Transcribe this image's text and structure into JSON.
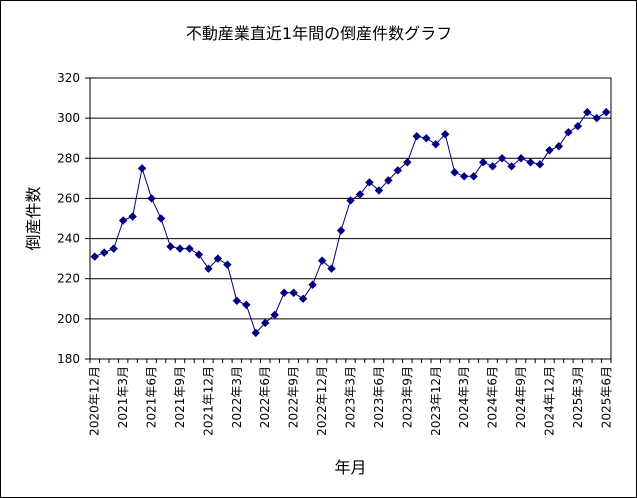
{
  "chart_data": {
    "type": "line",
    "title": "不動産業直近1年間の倒産件数グラフ",
    "xlabel": "年月",
    "ylabel": "倒産件数",
    "ylim": [
      180,
      320
    ],
    "yticks": [
      180,
      200,
      220,
      240,
      260,
      280,
      300,
      320
    ],
    "grid": true,
    "legend": false,
    "line_color": "#000080",
    "marker": "diamond",
    "x_tick_labels": [
      "2020年12月",
      "2021年3月",
      "2021年6月",
      "2021年9月",
      "2021年12月",
      "2022年3月",
      "2022年6月",
      "2022年9月",
      "2022年12月",
      "2023年3月",
      "2023年6月",
      "2023年9月",
      "2023年12月",
      "2024年3月",
      "2024年6月",
      "2024年9月",
      "2024年12月",
      "2025年3月",
      "2025年6月"
    ],
    "x": [
      "2020-12",
      "2021-01",
      "2021-02",
      "2021-03",
      "2021-04",
      "2021-05",
      "2021-06",
      "2021-07",
      "2021-08",
      "2021-09",
      "2021-10",
      "2021-11",
      "2021-12",
      "2022-01",
      "2022-02",
      "2022-03",
      "2022-04",
      "2022-05",
      "2022-06",
      "2022-07",
      "2022-08",
      "2022-09",
      "2022-10",
      "2022-11",
      "2022-12",
      "2023-01",
      "2023-02",
      "2023-03",
      "2023-04",
      "2023-05",
      "2023-06",
      "2023-07",
      "2023-08",
      "2023-09",
      "2023-10",
      "2023-11",
      "2023-12",
      "2024-01",
      "2024-02",
      "2024-03",
      "2024-04",
      "2024-05",
      "2024-06",
      "2024-07",
      "2024-08",
      "2024-09",
      "2024-10",
      "2024-11",
      "2024-12",
      "2025-01",
      "2025-02",
      "2025-03",
      "2025-04",
      "2025-05",
      "2025-06"
    ],
    "values": [
      231,
      233,
      235,
      249,
      251,
      275,
      260,
      250,
      236,
      235,
      235,
      232,
      225,
      230,
      227,
      209,
      207,
      193,
      198,
      202,
      213,
      213,
      210,
      217,
      229,
      225,
      244,
      259,
      262,
      268,
      264,
      269,
      274,
      278,
      291,
      290,
      287,
      292,
      273,
      271,
      271,
      278,
      276,
      280,
      276,
      280,
      278,
      277,
      284,
      286,
      293,
      296,
      303,
      300,
      303
    ]
  }
}
